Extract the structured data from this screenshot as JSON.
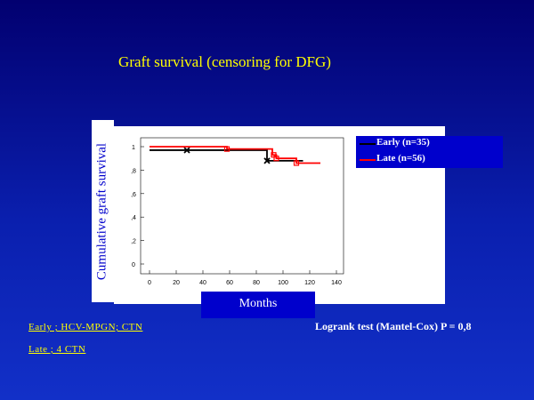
{
  "title": "Graft survival (censoring for DFG)",
  "footnotes": [
    "Early ; HCV-MPGN; CTN",
    "Late ; 4 CTN"
  ],
  "stat_text": "Logrank test (Mantel-Cox) P = 0,8",
  "colors": {
    "early": "#000000",
    "late": "#ff0000",
    "title": "#ffff00",
    "panel_blue": "#0000cc"
  },
  "chart_data": {
    "type": "line",
    "step": true,
    "xlabel": "Months",
    "ylabel": "Cumulative  graft  survival",
    "xlim": [
      0,
      140
    ],
    "ylim": [
      0,
      1
    ],
    "x_ticks": [
      "0",
      "20",
      "40",
      "60",
      "80",
      "100",
      "120",
      "140"
    ],
    "y_ticks": [
      "0",
      ",2",
      ",4",
      ",6",
      ",8",
      "1"
    ],
    "legend_position": "right",
    "series": [
      {
        "name": "Early (n=35)",
        "color": "#000000",
        "step_x": [
          0,
          88,
          115
        ],
        "step_y": [
          0.97,
          0.88,
          0.88
        ],
        "censored_x": [
          28,
          88
        ],
        "censored_y": [
          0.97,
          0.88
        ]
      },
      {
        "name": "Late (n=56)",
        "color": "#ff0000",
        "step_x": [
          0,
          58,
          92,
          95,
          110,
          128
        ],
        "step_y": [
          1.0,
          0.98,
          0.93,
          0.9,
          0.86,
          0.86
        ],
        "censored_x": [
          58,
          93,
          95,
          110
        ],
        "censored_y": [
          0.98,
          0.93,
          0.9,
          0.86
        ]
      }
    ]
  }
}
